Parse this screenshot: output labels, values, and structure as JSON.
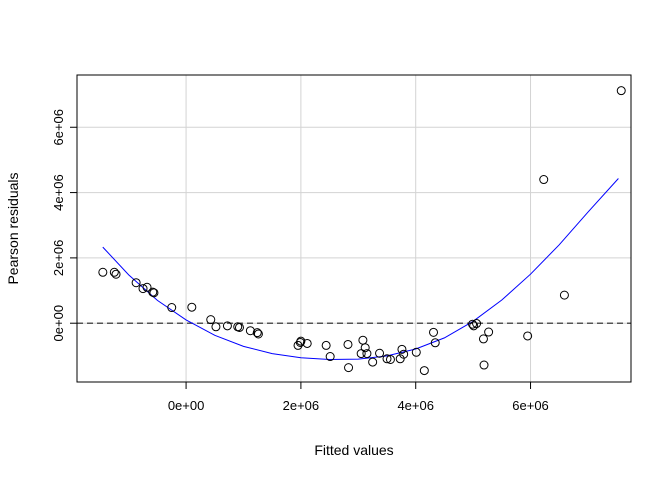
{
  "chart_data": {
    "type": "scatter",
    "xlabel": "Fitted values",
    "ylabel": "Pearson residuals",
    "xlim": [
      -1900000,
      7750000
    ],
    "ylim": [
      -1800000,
      7600000
    ],
    "grid": true,
    "x_ticks": [
      {
        "value": 0,
        "label": "0e+00"
      },
      {
        "value": 2000000,
        "label": "2e+06"
      },
      {
        "value": 4000000,
        "label": "4e+06"
      },
      {
        "value": 6000000,
        "label": "6e+06"
      }
    ],
    "y_ticks": [
      {
        "value": 0,
        "label": "0e+00"
      },
      {
        "value": 2000000,
        "label": "2e+06"
      },
      {
        "value": 4000000,
        "label": "4e+06"
      },
      {
        "value": 6000000,
        "label": "6e+06"
      }
    ],
    "reference_line": {
      "y": 0,
      "style": "dashed",
      "color": "#555555"
    },
    "colors": {
      "points": "#000000",
      "curve": "#0000ff",
      "grid": "#d3d3d3"
    },
    "points": [
      [
        -1450000,
        1560000
      ],
      [
        -1250000,
        1560000
      ],
      [
        -1220000,
        1500000
      ],
      [
        -870000,
        1240000
      ],
      [
        -750000,
        1060000
      ],
      [
        -680000,
        1100000
      ],
      [
        -580000,
        950000
      ],
      [
        -560000,
        930000
      ],
      [
        -250000,
        480000
      ],
      [
        100000,
        490000
      ],
      [
        430000,
        110000
      ],
      [
        520000,
        -110000
      ],
      [
        720000,
        -80000
      ],
      [
        900000,
        -110000
      ],
      [
        930000,
        -130000
      ],
      [
        1120000,
        -230000
      ],
      [
        1240000,
        -290000
      ],
      [
        1260000,
        -330000
      ],
      [
        1950000,
        -680000
      ],
      [
        1990000,
        -590000
      ],
      [
        2000000,
        -550000
      ],
      [
        2110000,
        -620000
      ],
      [
        2440000,
        -680000
      ],
      [
        2510000,
        -1020000
      ],
      [
        2820000,
        -650000
      ],
      [
        2830000,
        -1360000
      ],
      [
        3050000,
        -930000
      ],
      [
        3080000,
        -520000
      ],
      [
        3120000,
        -750000
      ],
      [
        3150000,
        -930000
      ],
      [
        3250000,
        -1190000
      ],
      [
        3370000,
        -920000
      ],
      [
        3500000,
        -1090000
      ],
      [
        3560000,
        -1110000
      ],
      [
        3730000,
        -1090000
      ],
      [
        3760000,
        -800000
      ],
      [
        3790000,
        -950000
      ],
      [
        4010000,
        -890000
      ],
      [
        4150000,
        -1450000
      ],
      [
        4310000,
        -280000
      ],
      [
        4340000,
        -600000
      ],
      [
        4990000,
        -30000
      ],
      [
        5010000,
        -80000
      ],
      [
        5060000,
        -10000
      ],
      [
        5180000,
        -480000
      ],
      [
        5190000,
        -1280000
      ],
      [
        5270000,
        -270000
      ],
      [
        5950000,
        -390000
      ],
      [
        6230000,
        4400000
      ],
      [
        6590000,
        860000
      ],
      [
        7580000,
        7120000
      ]
    ],
    "curve": [
      [
        -1450000,
        2330000
      ],
      [
        -1000000,
        1480000
      ],
      [
        -500000,
        700000
      ],
      [
        0,
        100000
      ],
      [
        500000,
        -370000
      ],
      [
        1000000,
        -710000
      ],
      [
        1500000,
        -930000
      ],
      [
        2000000,
        -1060000
      ],
      [
        2500000,
        -1110000
      ],
      [
        3000000,
        -1100000
      ],
      [
        3500000,
        -1000000
      ],
      [
        4000000,
        -790000
      ],
      [
        4500000,
        -450000
      ],
      [
        5000000,
        60000
      ],
      [
        5500000,
        710000
      ],
      [
        6000000,
        1500000
      ],
      [
        6500000,
        2400000
      ],
      [
        7000000,
        3400000
      ],
      [
        7530000,
        4430000
      ]
    ]
  }
}
